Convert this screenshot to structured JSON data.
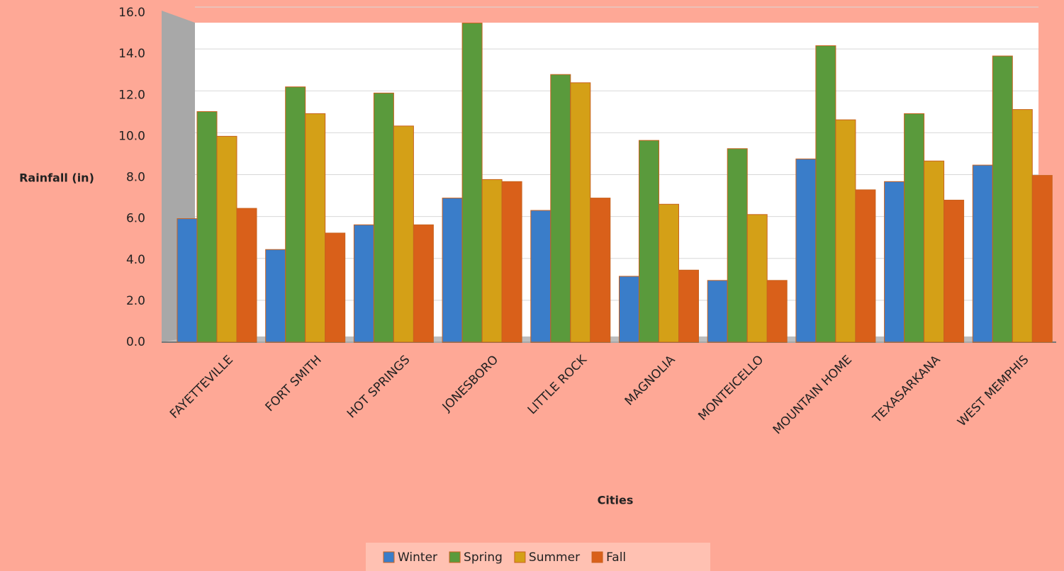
{
  "chart_data": {
    "type": "bar",
    "x_label": "Cities",
    "y_label": "Rainfall (in)",
    "categories": [
      "FAYETTEVILLE",
      "FORT SMITH",
      "HOT SPRINGS",
      "JONESBORO",
      "LITTLE ROCK",
      "MAGNOLIA",
      "MONTEICELLO",
      "MOUNTAIN HOME",
      "TEXASARKANA",
      "WEST MEMPHIS"
    ],
    "series": [
      {
        "name": "Winter",
        "color": "#3a7dc9",
        "values": [
          6.0,
          4.5,
          5.7,
          7.0,
          6.4,
          3.2,
          3.0,
          8.9,
          7.8,
          8.6
        ]
      },
      {
        "name": "Spring",
        "color": "#5a9a3c",
        "values": [
          11.2,
          12.4,
          12.1,
          15.5,
          13.0,
          9.8,
          9.4,
          14.4,
          11.1,
          13.9
        ]
      },
      {
        "name": "Summer",
        "color": "#d4a017",
        "values": [
          10.0,
          11.1,
          10.5,
          7.9,
          12.6,
          6.7,
          6.2,
          10.8,
          8.8,
          11.3
        ]
      },
      {
        "name": "Fall",
        "color": "#d9601a",
        "values": [
          6.5,
          5.3,
          5.7,
          7.8,
          7.0,
          3.5,
          3.0,
          7.4,
          6.9,
          8.1
        ]
      }
    ],
    "ylim": [
      0,
      16
    ],
    "yticks": [
      {
        "value": 0,
        "label": "0.0"
      },
      {
        "value": 2,
        "label": "2.0"
      },
      {
        "value": 4,
        "label": "4.0"
      },
      {
        "value": 6,
        "label": "6.0"
      },
      {
        "value": 8,
        "label": "8.0"
      },
      {
        "value": 10,
        "label": "10.0"
      },
      {
        "value": 12,
        "label": "12.0"
      },
      {
        "value": 14,
        "label": "14.0"
      },
      {
        "value": 16,
        "label": "16.0"
      }
    ],
    "grid": true,
    "legend": "bottom"
  }
}
